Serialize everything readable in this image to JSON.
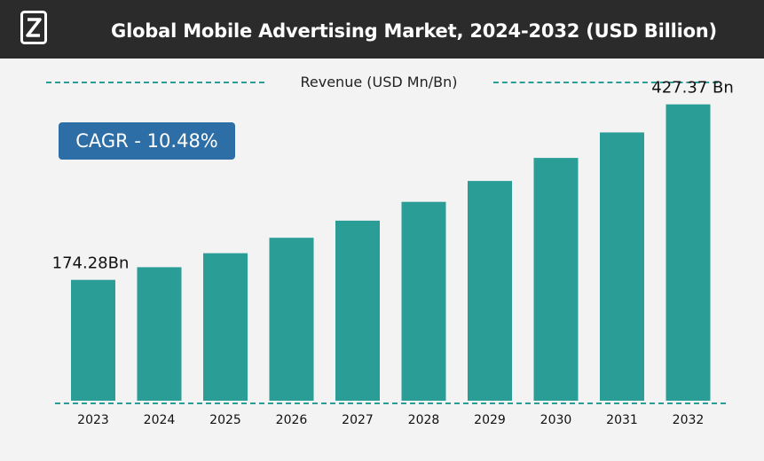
{
  "header": {
    "title": "Global Mobile Advertising Market, 2024-2032 (USD Billion)",
    "logo_icon": "brand-logo-icon"
  },
  "subtitle": "Revenue (USD Mn/Bn)",
  "cagr_label": "CAGR - 10.48%",
  "colors": {
    "bar": "#2a9d96",
    "badge": "#2e6ea6",
    "header": "#2b2b2b"
  },
  "chart_data": {
    "type": "bar",
    "title": "Global Mobile Advertising Market, 2024-2032 (USD Billion)",
    "ylabel": "Revenue (USD Mn/Bn)",
    "xlabel": "",
    "categories": [
      "2023",
      "2024",
      "2025",
      "2026",
      "2027",
      "2028",
      "2029",
      "2030",
      "2031",
      "2032"
    ],
    "values": [
      174.28,
      192.5,
      212.7,
      235.0,
      259.6,
      286.8,
      316.9,
      350.1,
      386.8,
      427.37
    ],
    "ylim": [
      0,
      450
    ],
    "data_labels": [
      {
        "category": "2023",
        "text": "174.28Bn"
      },
      {
        "category": "2032",
        "text": "427.37 Bn"
      }
    ],
    "grid": false
  }
}
